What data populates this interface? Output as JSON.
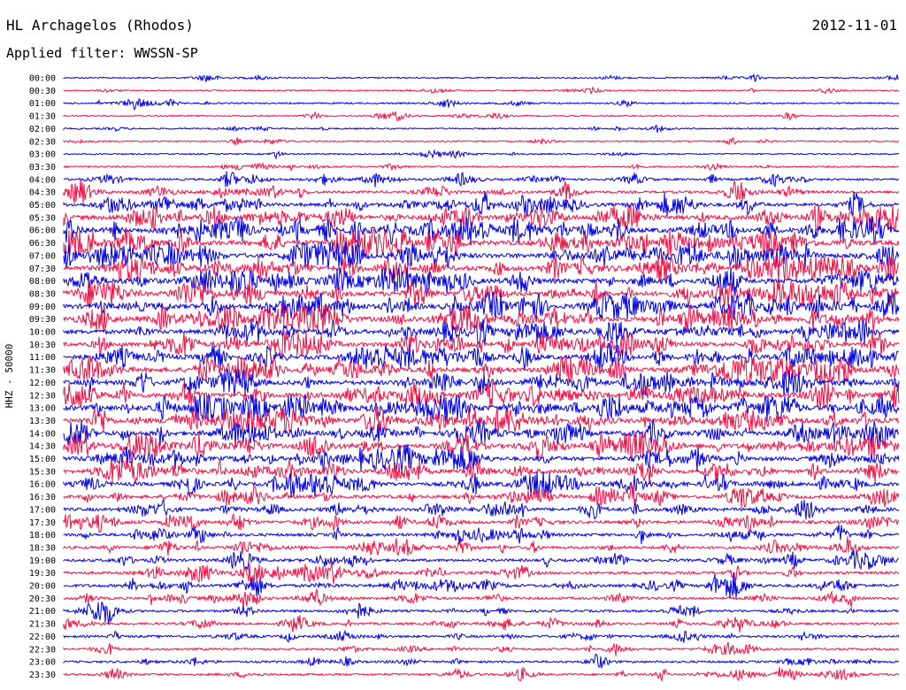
{
  "header": {
    "station": "HL Archagelos (Rhodos)",
    "filter": "Applied filter: WWSSN-SP",
    "date": "2012-11-01"
  },
  "chart_data": {
    "type": "line",
    "ylabel": "HHZ - 50000",
    "rows": [
      "00:00",
      "00:30",
      "01:00",
      "01:30",
      "02:00",
      "02:30",
      "03:00",
      "03:30",
      "04:00",
      "04:30",
      "05:00",
      "05:30",
      "06:00",
      "06:30",
      "07:00",
      "07:30",
      "08:00",
      "08:30",
      "09:00",
      "09:30",
      "10:00",
      "10:30",
      "11:00",
      "11:30",
      "12:00",
      "12:30",
      "13:00",
      "13:30",
      "14:00",
      "14:30",
      "15:00",
      "15:30",
      "16:00",
      "16:30",
      "17:00",
      "17:30",
      "18:00",
      "18:30",
      "19:00",
      "19:30",
      "20:00",
      "20:30",
      "21:00",
      "21:30",
      "22:00",
      "22:30",
      "23:00",
      "23:30"
    ],
    "activity": [
      0.05,
      0.05,
      0.1,
      0.05,
      0.08,
      0.06,
      0.05,
      0.12,
      0.25,
      0.35,
      0.55,
      0.8,
      0.9,
      0.9,
      0.85,
      0.9,
      0.9,
      0.85,
      0.85,
      0.9,
      0.75,
      0.75,
      0.8,
      0.85,
      0.8,
      0.85,
      0.95,
      0.9,
      0.85,
      0.8,
      0.7,
      0.65,
      0.6,
      0.55,
      0.5,
      0.5,
      0.45,
      0.4,
      0.4,
      0.4,
      0.45,
      0.35,
      0.3,
      0.3,
      0.3,
      0.25,
      0.25,
      0.25
    ],
    "colors": [
      "#0000dd",
      "#ee1144"
    ],
    "grid": false
  }
}
